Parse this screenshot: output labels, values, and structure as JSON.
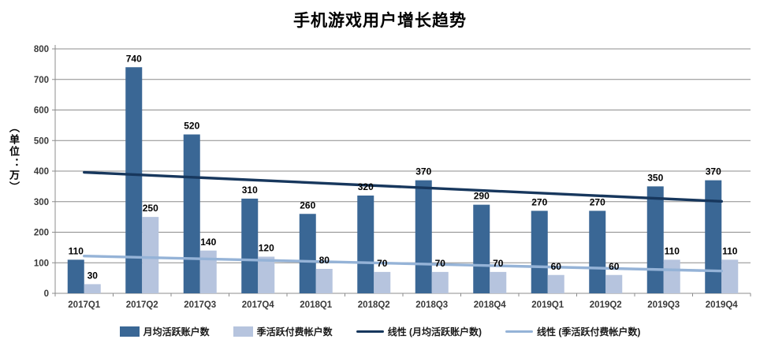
{
  "title": "手机游戏用户增长趋势",
  "y_axis_title": "（单位：万）",
  "chart_data": {
    "type": "bar",
    "title": "手机游戏用户增长趋势",
    "ylabel": "（单位：万）",
    "ylim": [
      0,
      800
    ],
    "ytick_step": 100,
    "grid": true,
    "legend_position": "bottom",
    "categories": [
      "2017Q1",
      "2017Q2",
      "2017Q3",
      "2017Q4",
      "2018Q1",
      "2018Q2",
      "2018Q3",
      "2018Q4",
      "2019Q1",
      "2019Q2",
      "2019Q3",
      "2019Q4"
    ],
    "series": [
      {
        "name": "月均活跃账户数",
        "color": "#3A6795",
        "values": [
          110,
          740,
          520,
          310,
          260,
          320,
          370,
          290,
          270,
          270,
          350,
          370
        ]
      },
      {
        "name": "季活跃付费帐户数",
        "color": "#B6C4DE",
        "values": [
          30,
          250,
          140,
          120,
          80,
          70,
          70,
          70,
          60,
          60,
          110,
          110
        ]
      }
    ],
    "trendlines": [
      {
        "name": "线性 (月均活跃账户数)",
        "color": "#17375D",
        "start_value": 396,
        "end_value": 301
      },
      {
        "name": "线性 (季活跃付费帐户数)",
        "color": "#95B3D7",
        "start_value": 122,
        "end_value": 73
      }
    ],
    "colors": {
      "gridline": "#8C8C8C",
      "axis": "#8C8C8C",
      "tick_label": "#3A3A3A",
      "data_label": "#000000"
    }
  }
}
